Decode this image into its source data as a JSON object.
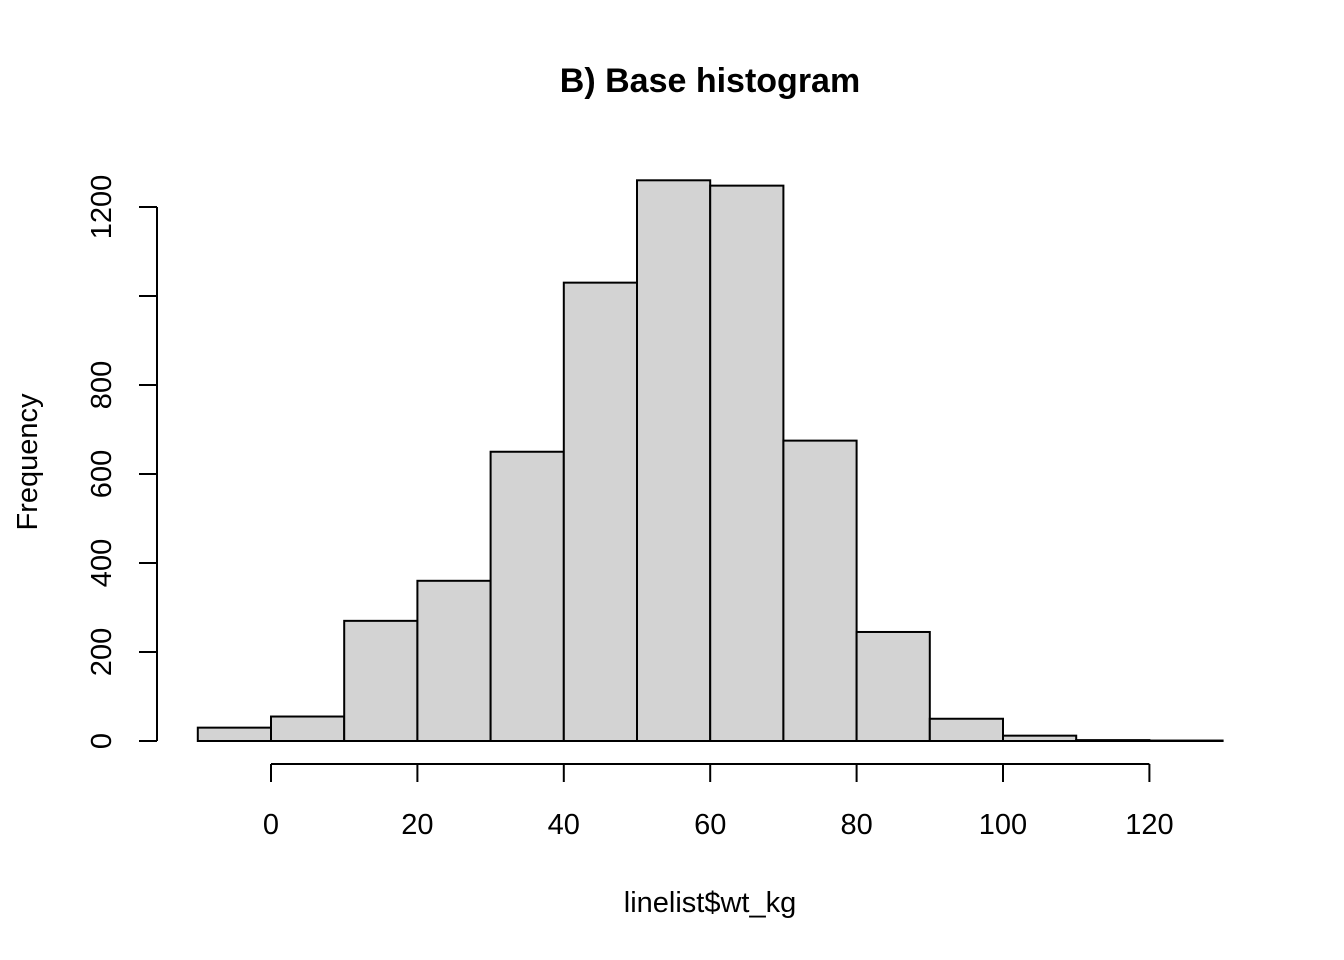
{
  "chart_data": {
    "type": "bar",
    "title": "B) Base histogram",
    "xlabel": "linelist$wt_kg",
    "ylabel": "Frequency",
    "bin_edges": [
      -10,
      0,
      10,
      20,
      30,
      40,
      50,
      60,
      70,
      80,
      90,
      100,
      110,
      120,
      130
    ],
    "values": [
      30,
      55,
      270,
      360,
      650,
      1030,
      1260,
      1248,
      675,
      245,
      50,
      12,
      2,
      1
    ],
    "x_ticks": [
      0,
      20,
      40,
      60,
      80,
      100,
      120
    ],
    "y_ticks": [
      0,
      200,
      400,
      600,
      800,
      1000,
      1200
    ],
    "y_tick_labels": [
      "0",
      "200",
      "400",
      "600",
      "800",
      "",
      "1200"
    ],
    "xlim": [
      -10,
      130
    ],
    "ylim": [
      0,
      1200
    ],
    "grid": false,
    "bar_color": "#d3d3d3",
    "bar_border_color": "#000000"
  }
}
